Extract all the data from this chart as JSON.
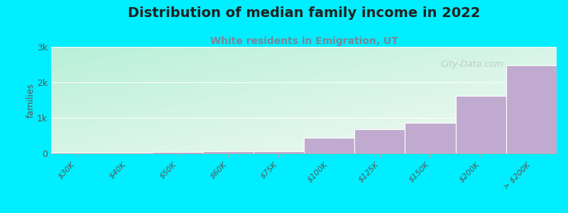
{
  "title": "Distribution of median family income in 2022",
  "subtitle": "White residents in Emigration, UT",
  "categories": [
    "$30K",
    "$40K",
    "$50K",
    "$60K",
    "$75K",
    "$100K",
    "$125K",
    "$150K",
    "$200K",
    "> $200K"
  ],
  "values": [
    15,
    30,
    50,
    55,
    60,
    450,
    680,
    870,
    1620,
    2480
  ],
  "bar_color": "#c0aad0",
  "bar_edge_color": "#ffffff",
  "background_color": "#00eeff",
  "title_color": "#222222",
  "subtitle_color": "#778899",
  "ylabel": "families",
  "ylim": [
    0,
    3000
  ],
  "yticks": [
    0,
    1000,
    2000,
    3000
  ],
  "ytick_labels": [
    "0",
    "1k",
    "2k",
    "3k"
  ],
  "watermark": "City-Data.com",
  "title_fontsize": 14,
  "subtitle_fontsize": 10,
  "grad_left": "#b8f0d8",
  "grad_right": "#f5faf5"
}
